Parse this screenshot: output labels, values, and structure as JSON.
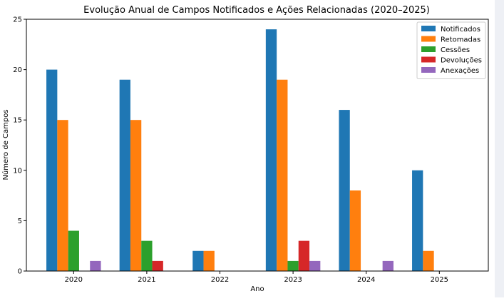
{
  "chart_data": {
    "type": "bar",
    "title": "Evolução Anual de Campos Notificados e Ações Relacionadas (2020–2025)",
    "xlabel": "Ano",
    "ylabel": "Número de Campos",
    "categories": [
      "2020",
      "2021",
      "2022",
      "2023",
      "2024",
      "2025"
    ],
    "ylim": [
      0,
      25
    ],
    "yticks": [
      0,
      5,
      10,
      15,
      20,
      25
    ],
    "grid": false,
    "legend_position": "top-right",
    "series": [
      {
        "name": "Notificados",
        "color": "#1f77b4",
        "values": [
          20,
          19,
          2,
          24,
          16,
          10
        ]
      },
      {
        "name": "Retomadas",
        "color": "#ff7f0e",
        "values": [
          15,
          15,
          2,
          19,
          8,
          2
        ]
      },
      {
        "name": "Cessões",
        "color": "#2ca02c",
        "values": [
          4,
          3,
          0,
          1,
          0,
          0
        ]
      },
      {
        "name": "Devoluções",
        "color": "#d62728",
        "values": [
          0,
          1,
          0,
          3,
          0,
          0
        ]
      },
      {
        "name": "Anexações",
        "color": "#9467bd",
        "values": [
          1,
          0,
          0,
          1,
          1,
          0
        ]
      }
    ]
  }
}
